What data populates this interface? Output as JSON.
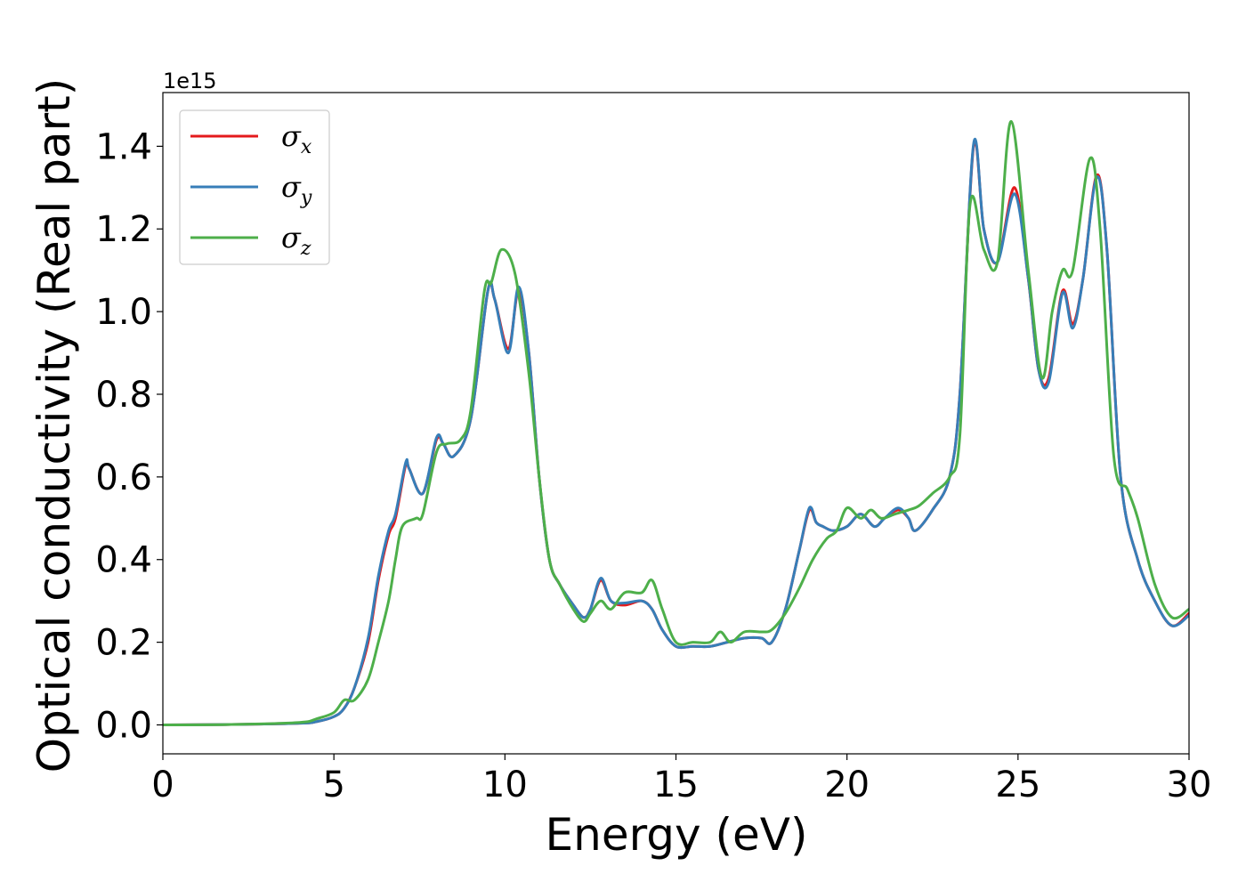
{
  "chart_data": {
    "type": "line",
    "xlabel": "Energy (eV)",
    "ylabel": "Optical conductivity (Real part)",
    "y_offset_label": "1e15",
    "xlim": [
      0,
      30
    ],
    "ylim": [
      -0.07,
      1.53
    ],
    "xticks": [
      0,
      5,
      10,
      15,
      20,
      25,
      30
    ],
    "xtick_labels": [
      "0",
      "5",
      "10",
      "15",
      "20",
      "25",
      "30"
    ],
    "yticks": [
      0.0,
      0.2,
      0.4,
      0.6,
      0.8,
      1.0,
      1.2,
      1.4
    ],
    "ytick_labels": [
      "0.0",
      "0.2",
      "0.4",
      "0.6",
      "0.8",
      "1.0",
      "1.2",
      "1.4"
    ],
    "grid": false,
    "legend_position": "top-left",
    "series": [
      {
        "name": "σ",
        "subscript": "x",
        "color": "#e41a1c",
        "x": [
          0,
          2,
          4,
          4.5,
          5,
          5.3,
          5.6,
          6.0,
          6.3,
          6.6,
          6.8,
          7.1,
          7.2,
          7.6,
          8.0,
          8.2,
          8.5,
          9.0,
          9.5,
          9.7,
          10.1,
          10.4,
          10.7,
          11.0,
          11.3,
          11.6,
          12.0,
          12.3,
          12.5,
          12.8,
          13.1,
          13.5,
          14.0,
          14.3,
          14.6,
          15.0,
          15.5,
          16.0,
          16.5,
          17.0,
          17.5,
          17.8,
          18.2,
          18.6,
          18.9,
          19.1,
          19.3,
          19.6,
          20.0,
          20.4,
          20.8,
          21.1,
          21.5,
          21.8,
          22.0,
          22.5,
          23.0,
          23.3,
          23.7,
          24.0,
          24.4,
          24.9,
          25.3,
          25.6,
          25.9,
          26.3,
          26.6,
          26.9,
          27.3,
          27.6,
          28.0,
          28.5,
          29.0,
          29.5,
          30.0
        ],
        "y": [
          0,
          0.001,
          0.004,
          0.008,
          0.02,
          0.04,
          0.09,
          0.2,
          0.35,
          0.46,
          0.5,
          0.63,
          0.62,
          0.56,
          0.69,
          0.68,
          0.65,
          0.74,
          1.05,
          1.03,
          0.91,
          1.05,
          0.9,
          0.6,
          0.4,
          0.34,
          0.29,
          0.26,
          0.28,
          0.35,
          0.3,
          0.29,
          0.3,
          0.28,
          0.23,
          0.19,
          0.19,
          0.19,
          0.2,
          0.21,
          0.21,
          0.2,
          0.28,
          0.42,
          0.52,
          0.49,
          0.48,
          0.47,
          0.48,
          0.51,
          0.48,
          0.5,
          0.52,
          0.5,
          0.47,
          0.52,
          0.6,
          0.8,
          1.4,
          1.2,
          1.12,
          1.3,
          1.08,
          0.86,
          0.84,
          1.05,
          0.97,
          1.08,
          1.33,
          1.15,
          0.6,
          0.4,
          0.3,
          0.24,
          0.27
        ]
      },
      {
        "name": "σ",
        "subscript": "y",
        "color": "#377eb8",
        "x": [
          0,
          2,
          4,
          4.5,
          5,
          5.3,
          5.6,
          6.0,
          6.3,
          6.6,
          6.8,
          7.1,
          7.2,
          7.6,
          8.0,
          8.2,
          8.5,
          9.0,
          9.5,
          9.7,
          10.1,
          10.4,
          10.7,
          11.0,
          11.3,
          11.6,
          12.0,
          12.3,
          12.5,
          12.8,
          13.1,
          13.5,
          14.0,
          14.3,
          14.6,
          15.0,
          15.5,
          16.0,
          16.5,
          17.0,
          17.5,
          17.8,
          18.2,
          18.6,
          18.9,
          19.1,
          19.3,
          19.6,
          20.0,
          20.4,
          20.8,
          21.1,
          21.5,
          21.8,
          22.0,
          22.5,
          23.0,
          23.3,
          23.7,
          24.0,
          24.4,
          24.9,
          25.3,
          25.6,
          25.9,
          26.3,
          26.6,
          26.9,
          27.3,
          27.6,
          28.0,
          28.5,
          29.0,
          29.5,
          30.0
        ],
        "y": [
          0,
          0.001,
          0.004,
          0.008,
          0.02,
          0.04,
          0.09,
          0.21,
          0.36,
          0.47,
          0.51,
          0.635,
          0.62,
          0.56,
          0.695,
          0.68,
          0.65,
          0.74,
          1.05,
          1.03,
          0.9,
          1.06,
          0.9,
          0.6,
          0.4,
          0.34,
          0.29,
          0.26,
          0.28,
          0.355,
          0.3,
          0.295,
          0.3,
          0.28,
          0.23,
          0.19,
          0.19,
          0.19,
          0.2,
          0.21,
          0.21,
          0.2,
          0.28,
          0.42,
          0.525,
          0.49,
          0.48,
          0.47,
          0.48,
          0.51,
          0.48,
          0.5,
          0.525,
          0.5,
          0.47,
          0.52,
          0.6,
          0.8,
          1.405,
          1.2,
          1.12,
          1.285,
          1.08,
          0.86,
          0.83,
          1.045,
          0.96,
          1.08,
          1.325,
          1.15,
          0.6,
          0.4,
          0.3,
          0.24,
          0.265
        ]
      },
      {
        "name": "σ",
        "subscript": "z",
        "color": "#4daf4a",
        "x": [
          0,
          2,
          4,
          4.5,
          5,
          5.3,
          5.6,
          6.0,
          6.3,
          6.6,
          6.8,
          7.0,
          7.4,
          7.6,
          8.0,
          8.3,
          8.7,
          9.0,
          9.4,
          9.6,
          9.9,
          10.3,
          10.7,
          11.0,
          11.3,
          11.6,
          12.0,
          12.3,
          12.5,
          12.8,
          13.1,
          13.5,
          14.0,
          14.3,
          14.6,
          15.0,
          15.5,
          16.0,
          16.3,
          16.6,
          17.0,
          17.5,
          17.8,
          18.2,
          18.6,
          19.0,
          19.4,
          19.7,
          20.0,
          20.4,
          20.7,
          21.0,
          21.4,
          21.8,
          22.1,
          22.5,
          23.0,
          23.3,
          23.6,
          24.0,
          24.4,
          24.8,
          25.3,
          25.7,
          26.0,
          26.3,
          26.6,
          27.1,
          27.4,
          27.8,
          28.2,
          28.5,
          29.0,
          29.5,
          30.0
        ],
        "y": [
          0,
          0.001,
          0.006,
          0.015,
          0.03,
          0.06,
          0.06,
          0.11,
          0.2,
          0.3,
          0.4,
          0.48,
          0.5,
          0.51,
          0.66,
          0.68,
          0.69,
          0.76,
          1.05,
          1.07,
          1.15,
          1.09,
          0.85,
          0.6,
          0.4,
          0.34,
          0.28,
          0.25,
          0.27,
          0.3,
          0.28,
          0.32,
          0.32,
          0.35,
          0.28,
          0.2,
          0.2,
          0.2,
          0.225,
          0.2,
          0.225,
          0.225,
          0.23,
          0.27,
          0.33,
          0.4,
          0.45,
          0.47,
          0.525,
          0.5,
          0.52,
          0.5,
          0.51,
          0.52,
          0.53,
          0.56,
          0.6,
          0.7,
          1.26,
          1.15,
          1.12,
          1.46,
          1.1,
          0.84,
          1.0,
          1.1,
          1.1,
          1.37,
          1.2,
          0.65,
          0.57,
          0.5,
          0.34,
          0.26,
          0.28
        ]
      }
    ]
  }
}
